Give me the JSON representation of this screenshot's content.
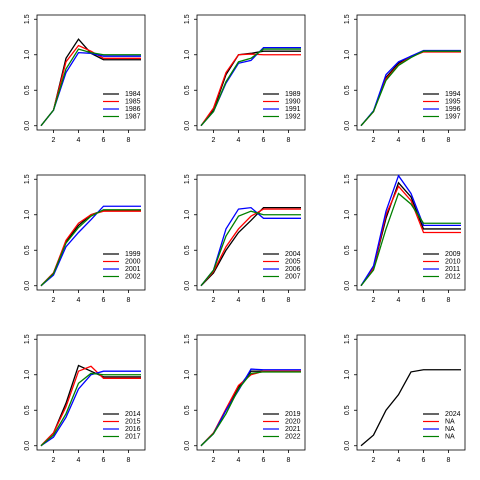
{
  "chart_data": [
    {
      "type": "line",
      "x": [
        1,
        2,
        3,
        4,
        5,
        6,
        7,
        8,
        9
      ],
      "xlim": [
        0.68,
        9.32
      ],
      "xticks": [
        2,
        4,
        6,
        8
      ],
      "ylim": [
        -0.06,
        1.56
      ],
      "yticks": [
        {
          "value": 0,
          "label": "0.0"
        },
        {
          "value": 0.5,
          "label": "0.5"
        },
        {
          "value": 1,
          "label": "1.0"
        },
        {
          "value": 1.5,
          "label": "1.5"
        }
      ],
      "series": [
        {
          "name": "1984",
          "color": "black",
          "values": [
            0,
            0.22,
            0.95,
            1.22,
            1.02,
            0.93,
            0.93,
            0.93,
            0.93
          ]
        },
        {
          "name": "1985",
          "color": "red",
          "values": [
            0,
            0.22,
            0.9,
            1.13,
            1.05,
            0.95,
            0.95,
            0.95,
            0.95
          ]
        },
        {
          "name": "1986",
          "color": "blue",
          "values": [
            0,
            0.22,
            0.75,
            1.03,
            1.02,
            0.98,
            0.98,
            0.98,
            0.98
          ]
        },
        {
          "name": "1987",
          "color": "green",
          "values": [
            0,
            0.22,
            0.8,
            1.08,
            1.03,
            1.0,
            1.0,
            1.0,
            1.0
          ]
        }
      ]
    },
    {
      "type": "line",
      "x": [
        1,
        2,
        3,
        4,
        5,
        6,
        7,
        8,
        9
      ],
      "xlim": [
        0.68,
        9.32
      ],
      "xticks": [
        2,
        4,
        6,
        8
      ],
      "ylim": [
        -0.06,
        1.56
      ],
      "yticks": [
        {
          "value": 0,
          "label": "0.0"
        },
        {
          "value": 0.5,
          "label": "0.5"
        },
        {
          "value": 1,
          "label": "1.0"
        },
        {
          "value": 1.5,
          "label": "1.5"
        }
      ],
      "series": [
        {
          "name": "1989",
          "color": "black",
          "values": [
            0,
            0.22,
            0.72,
            1.0,
            1.02,
            1.05,
            1.05,
            1.05,
            1.05
          ]
        },
        {
          "name": "1990",
          "color": "red",
          "values": [
            0,
            0.25,
            0.75,
            1.0,
            1.01,
            1.0,
            1.0,
            1.0,
            1.0
          ]
        },
        {
          "name": "1991",
          "color": "blue",
          "values": [
            0,
            0.2,
            0.6,
            0.88,
            0.92,
            1.1,
            1.1,
            1.1,
            1.1
          ]
        },
        {
          "name": "1992",
          "color": "green",
          "values": [
            0,
            0.2,
            0.62,
            0.9,
            0.95,
            1.08,
            1.08,
            1.08,
            1.08
          ]
        }
      ]
    },
    {
      "type": "line",
      "x": [
        1,
        2,
        3,
        4,
        5,
        6,
        7,
        8,
        9
      ],
      "xlim": [
        0.68,
        9.32
      ],
      "xticks": [
        2,
        4,
        6,
        8
      ],
      "ylim": [
        -0.06,
        1.56
      ],
      "yticks": [
        {
          "value": 0,
          "label": "0.0"
        },
        {
          "value": 0.5,
          "label": "0.5"
        },
        {
          "value": 1,
          "label": "1.0"
        },
        {
          "value": 1.5,
          "label": "1.5"
        }
      ],
      "series": [
        {
          "name": "1994",
          "color": "black",
          "values": [
            0,
            0.2,
            0.68,
            0.88,
            0.98,
            1.05,
            1.05,
            1.05,
            1.05
          ]
        },
        {
          "name": "1995",
          "color": "red",
          "values": [
            0,
            0.2,
            0.66,
            0.86,
            0.97,
            1.04,
            1.04,
            1.04,
            1.04
          ]
        },
        {
          "name": "1996",
          "color": "blue",
          "values": [
            0,
            0.21,
            0.72,
            0.9,
            0.98,
            1.06,
            1.06,
            1.06,
            1.06
          ]
        },
        {
          "name": "1997",
          "color": "green",
          "values": [
            0,
            0.2,
            0.64,
            0.85,
            0.96,
            1.05,
            1.05,
            1.05,
            1.05
          ]
        }
      ]
    },
    {
      "type": "line",
      "x": [
        1,
        2,
        3,
        4,
        5,
        6,
        7,
        8,
        9
      ],
      "xlim": [
        0.68,
        9.32
      ],
      "xticks": [
        2,
        4,
        6,
        8
      ],
      "ylim": [
        -0.06,
        1.56
      ],
      "yticks": [
        {
          "value": 0,
          "label": "0.0"
        },
        {
          "value": 0.5,
          "label": "0.5"
        },
        {
          "value": 1,
          "label": "1.0"
        },
        {
          "value": 1.5,
          "label": "1.5"
        }
      ],
      "series": [
        {
          "name": "1999",
          "color": "black",
          "values": [
            0,
            0.18,
            0.62,
            0.85,
            1.0,
            1.06,
            1.06,
            1.06,
            1.06
          ]
        },
        {
          "name": "2000",
          "color": "red",
          "values": [
            0,
            0.18,
            0.64,
            0.88,
            1.0,
            1.05,
            1.05,
            1.05,
            1.05
          ]
        },
        {
          "name": "2001",
          "color": "blue",
          "values": [
            0,
            0.15,
            0.55,
            0.75,
            0.93,
            1.12,
            1.12,
            1.12,
            1.12
          ]
        },
        {
          "name": "2002",
          "color": "green",
          "values": [
            0,
            0.17,
            0.6,
            0.82,
            0.98,
            1.07,
            1.07,
            1.07,
            1.07
          ]
        }
      ]
    },
    {
      "type": "line",
      "x": [
        1,
        2,
        3,
        4,
        5,
        6,
        7,
        8,
        9
      ],
      "xlim": [
        0.68,
        9.32
      ],
      "xticks": [
        2,
        4,
        6,
        8
      ],
      "ylim": [
        -0.06,
        1.56
      ],
      "yticks": [
        {
          "value": 0,
          "label": "0.0"
        },
        {
          "value": 0.5,
          "label": "0.5"
        },
        {
          "value": 1,
          "label": "1.0"
        },
        {
          "value": 1.5,
          "label": "1.5"
        }
      ],
      "series": [
        {
          "name": "2004",
          "color": "black",
          "values": [
            0,
            0.18,
            0.5,
            0.75,
            0.92,
            1.1,
            1.1,
            1.1,
            1.1
          ]
        },
        {
          "name": "2005",
          "color": "red",
          "values": [
            0,
            0.2,
            0.55,
            0.8,
            0.98,
            1.08,
            1.08,
            1.08,
            1.08
          ]
        },
        {
          "name": "2006",
          "color": "blue",
          "values": [
            0,
            0.22,
            0.8,
            1.08,
            1.1,
            0.95,
            0.95,
            0.95,
            0.95
          ]
        },
        {
          "name": "2007",
          "color": "green",
          "values": [
            0,
            0.22,
            0.7,
            0.98,
            1.05,
            1.0,
            1.0,
            1.0,
            1.0
          ]
        }
      ]
    },
    {
      "type": "line",
      "x": [
        1,
        2,
        3,
        4,
        5,
        6,
        7,
        8,
        9
      ],
      "xlim": [
        0.68,
        9.32
      ],
      "xticks": [
        2,
        4,
        6,
        8
      ],
      "ylim": [
        -0.06,
        1.56
      ],
      "yticks": [
        {
          "value": 0,
          "label": "0.0"
        },
        {
          "value": 0.5,
          "label": "0.5"
        },
        {
          "value": 1,
          "label": "1.0"
        },
        {
          "value": 1.5,
          "label": "1.5"
        }
      ],
      "series": [
        {
          "name": "2009",
          "color": "black",
          "values": [
            0,
            0.25,
            0.95,
            1.45,
            1.25,
            0.8,
            0.8,
            0.8,
            0.8
          ]
        },
        {
          "name": "2010",
          "color": "red",
          "values": [
            0,
            0.25,
            1.0,
            1.4,
            1.2,
            0.75,
            0.75,
            0.75,
            0.75
          ]
        },
        {
          "name": "2011",
          "color": "blue",
          "values": [
            0,
            0.28,
            1.05,
            1.55,
            1.3,
            0.85,
            0.85,
            0.85,
            0.85
          ]
        },
        {
          "name": "2012",
          "color": "green",
          "values": [
            0,
            0.22,
            0.8,
            1.3,
            1.15,
            0.88,
            0.88,
            0.88,
            0.88
          ]
        }
      ]
    },
    {
      "type": "line",
      "x": [
        1,
        2,
        3,
        4,
        5,
        6,
        7,
        8,
        9
      ],
      "xlim": [
        0.68,
        9.32
      ],
      "xticks": [
        2,
        4,
        6,
        8
      ],
      "ylim": [
        -0.06,
        1.56
      ],
      "yticks": [
        {
          "value": 0,
          "label": "0.0"
        },
        {
          "value": 0.5,
          "label": "0.5"
        },
        {
          "value": 1,
          "label": "1.0"
        },
        {
          "value": 1.5,
          "label": "1.5"
        }
      ],
      "series": [
        {
          "name": "2014",
          "color": "black",
          "values": [
            0,
            0.18,
            0.6,
            1.13,
            1.05,
            0.97,
            0.97,
            0.97,
            0.97
          ]
        },
        {
          "name": "2015",
          "color": "red",
          "values": [
            0,
            0.18,
            0.55,
            1.05,
            1.12,
            0.95,
            0.95,
            0.95,
            0.95
          ]
        },
        {
          "name": "2016",
          "color": "blue",
          "values": [
            0,
            0.12,
            0.4,
            0.8,
            1.0,
            1.05,
            1.05,
            1.05,
            1.05
          ]
        },
        {
          "name": "2017",
          "color": "green",
          "values": [
            0,
            0.15,
            0.45,
            0.88,
            1.02,
            1.0,
            1.0,
            1.0,
            1.0
          ]
        }
      ]
    },
    {
      "type": "line",
      "x": [
        1,
        2,
        3,
        4,
        5,
        6,
        7,
        8,
        9
      ],
      "xlim": [
        0.68,
        9.32
      ],
      "xticks": [
        2,
        4,
        6,
        8
      ],
      "ylim": [
        -0.06,
        1.56
      ],
      "yticks": [
        {
          "value": 0,
          "label": "0.0"
        },
        {
          "value": 0.5,
          "label": "0.5"
        },
        {
          "value": 1,
          "label": "1.0"
        },
        {
          "value": 1.5,
          "label": "1.5"
        }
      ],
      "series": [
        {
          "name": "2019",
          "color": "black",
          "values": [
            0,
            0.18,
            0.5,
            0.82,
            1.05,
            1.05,
            1.05,
            1.05,
            1.05
          ]
        },
        {
          "name": "2020",
          "color": "red",
          "values": [
            0,
            0.18,
            0.52,
            0.85,
            1.0,
            1.05,
            1.05,
            1.05,
            1.05
          ]
        },
        {
          "name": "2021",
          "color": "blue",
          "values": [
            0,
            0.17,
            0.5,
            0.78,
            1.08,
            1.07,
            1.07,
            1.07,
            1.07
          ]
        },
        {
          "name": "2022",
          "color": "green",
          "values": [
            0,
            0.17,
            0.45,
            0.8,
            1.02,
            1.04,
            1.04,
            1.04,
            1.04
          ]
        }
      ]
    },
    {
      "type": "line",
      "x": [
        1,
        2,
        3,
        4,
        5,
        6,
        7,
        8,
        9
      ],
      "xlim": [
        0.68,
        9.32
      ],
      "xticks": [
        2,
        4,
        6,
        8
      ],
      "ylim": [
        -0.06,
        1.56
      ],
      "yticks": [
        {
          "value": 0,
          "label": "0.0"
        },
        {
          "value": 0.5,
          "label": "0.5"
        },
        {
          "value": 1,
          "label": "1.0"
        },
        {
          "value": 1.5,
          "label": "1.5"
        }
      ],
      "series": [
        {
          "name": "2024",
          "color": "black",
          "values": [
            0,
            0.15,
            0.5,
            0.72,
            1.04,
            1.07,
            1.07,
            1.07,
            1.07
          ]
        },
        {
          "name": "NA",
          "color": "red",
          "values": [
            null,
            null,
            null,
            null,
            null,
            null,
            null,
            null,
            null
          ]
        },
        {
          "name": "NA",
          "color": "blue",
          "values": [
            null,
            null,
            null,
            null,
            null,
            null,
            null,
            null,
            null
          ]
        },
        {
          "name": "NA",
          "color": "green",
          "values": [
            null,
            null,
            null,
            null,
            null,
            null,
            null,
            null,
            null
          ]
        }
      ]
    }
  ]
}
